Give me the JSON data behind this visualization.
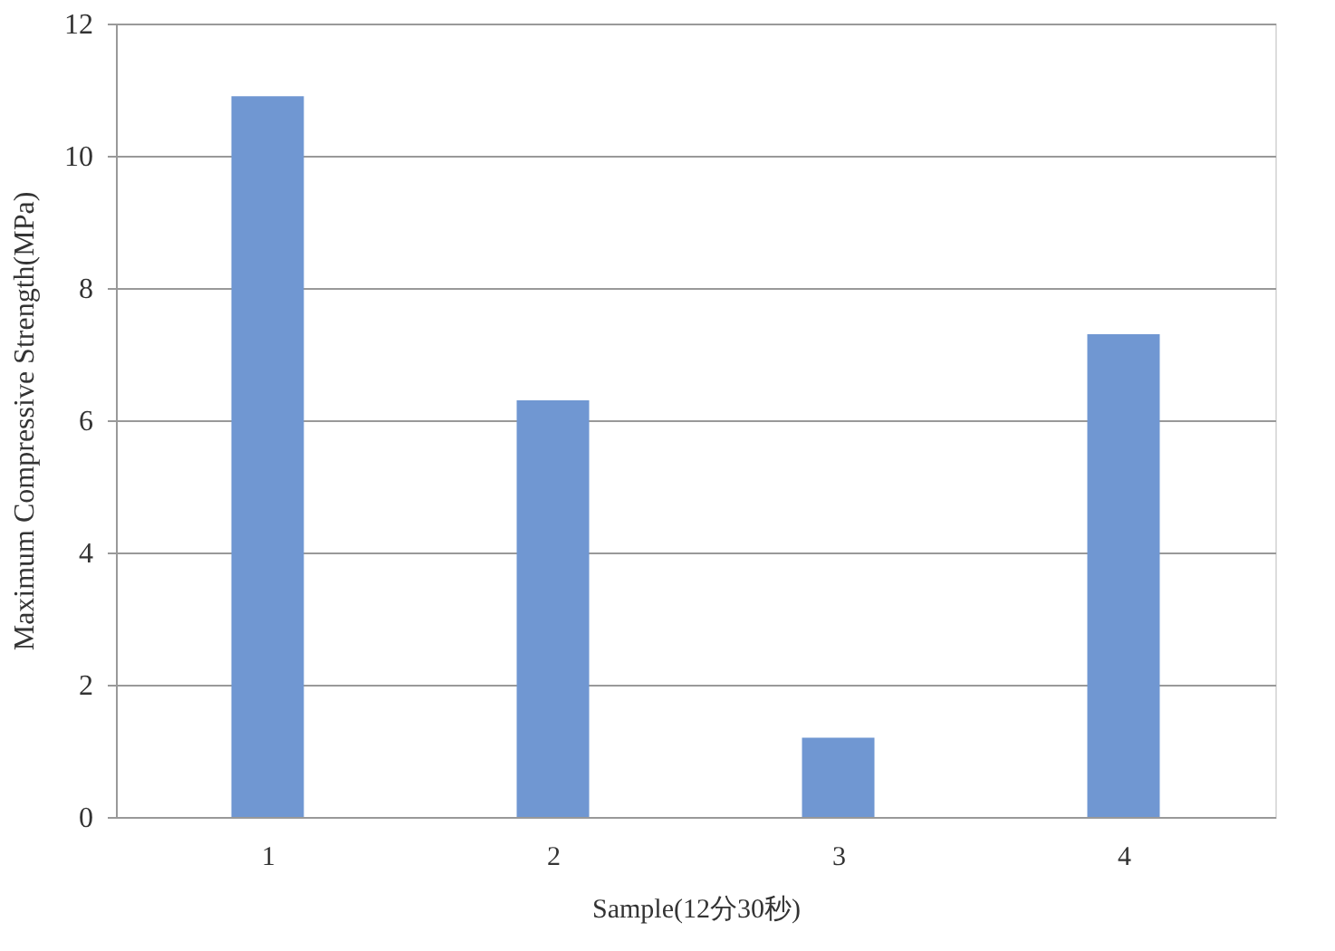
{
  "chart_data": {
    "type": "bar",
    "xlabel": "Sample(12分30秒)",
    "ylabel": "Maximum Compressive Strength(MPa)",
    "categories": [
      "1",
      "2",
      "3",
      "4"
    ],
    "values": [
      10.9,
      6.3,
      1.2,
      7.3
    ],
    "color": "#7097d2",
    "ylim": [
      0,
      12
    ],
    "yticks": [
      0,
      2,
      4,
      6,
      8,
      10,
      12
    ],
    "grid": "y"
  }
}
